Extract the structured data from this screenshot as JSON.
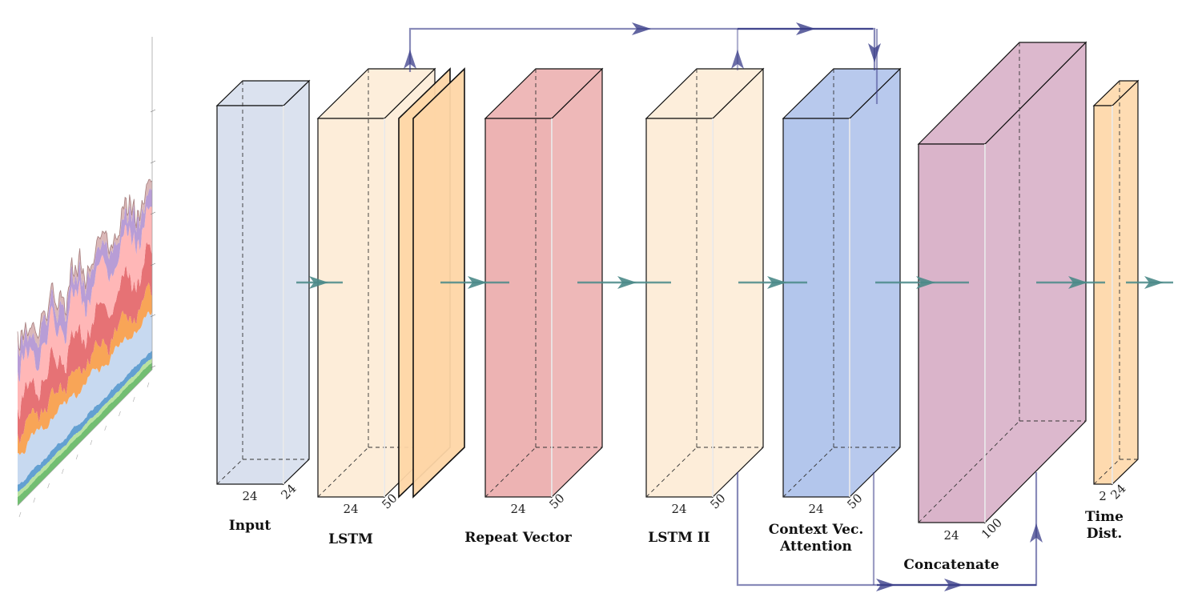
{
  "layers": [
    {
      "id": "input",
      "label_lines": [
        "Input"
      ],
      "dims": [
        "24",
        "24"
      ],
      "color": "#d5ddec",
      "side_color": "#d5ddec"
    },
    {
      "id": "lstm",
      "label_lines": [
        "LSTM"
      ],
      "dims": [
        "24",
        "50"
      ],
      "color": "#fdebd5",
      "side_color": "#fdebd5",
      "extra_color": "#fed6a6"
    },
    {
      "id": "repeat",
      "label_lines": [
        "Repeat Vector"
      ],
      "dims": [
        "24",
        "50"
      ],
      "color": "#ebabab",
      "side_color": "#ebabab"
    },
    {
      "id": "lstm2",
      "label_lines": [
        "LSTM II"
      ],
      "dims": [
        "24",
        "50"
      ],
      "color": "#fdebd5",
      "side_color": "#fdebd5"
    },
    {
      "id": "context",
      "label_lines": [
        "Context Vec.",
        "Attention"
      ],
      "dims": [
        "24",
        "50"
      ],
      "color": "#abc0ea",
      "side_color": "#abc0ea"
    },
    {
      "id": "concat",
      "label_lines": [
        "Concatenate"
      ],
      "dims": [
        "24",
        "100"
      ],
      "color": "#d6acc4",
      "side_color": "#d6acc4"
    },
    {
      "id": "timedist",
      "label_lines": [
        "Time",
        "Dist."
      ],
      "dims": [
        "2",
        "24"
      ],
      "color": "#fed6a6",
      "side_color": "#fed6a6"
    }
  ],
  "colors": {
    "flow_arrow": "#4a8a88",
    "skip_arrow": "#3b3e8a",
    "stack_green": "#6abb6a",
    "stack_lightgreen": "#b5e09a",
    "stack_blue": "#5b9bd0",
    "stack_lightblue": "#c4d7ef",
    "stack_orange": "#f8a04e",
    "stack_red": "#e56a6e",
    "stack_pink": "#ffb3b3",
    "stack_purple": "#b498d4",
    "stack_mauve": "#d8b4b4"
  }
}
